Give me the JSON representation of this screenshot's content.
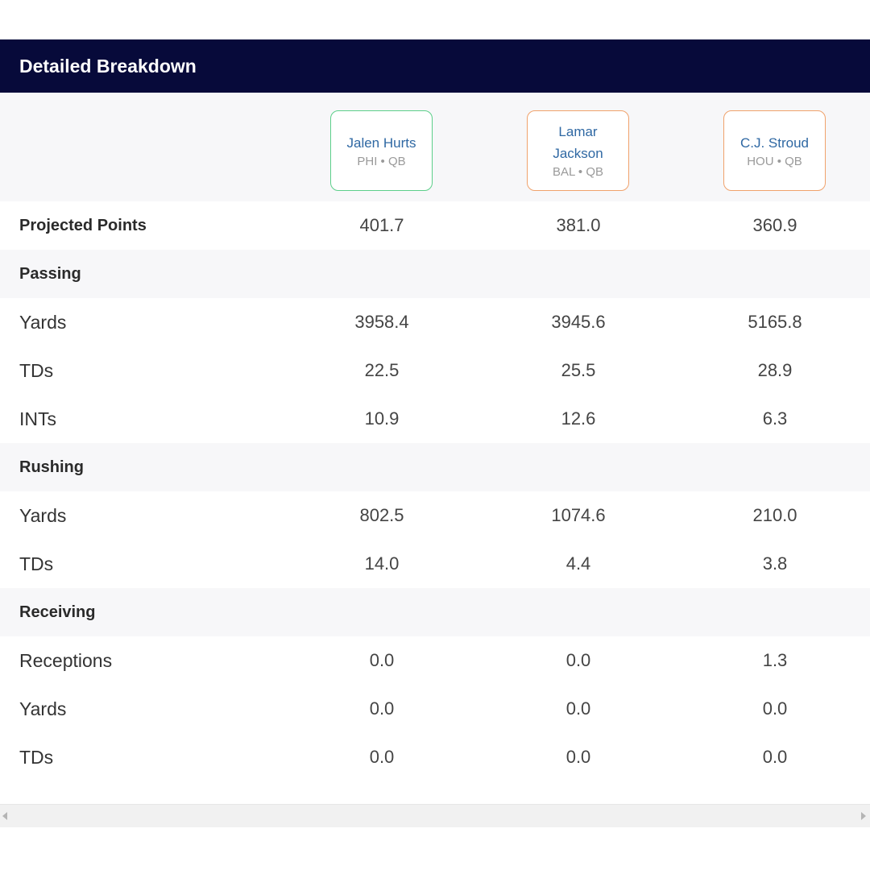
{
  "header": {
    "title": "Detailed Breakdown"
  },
  "players": [
    {
      "name": "Jalen Hurts",
      "meta": "PHI • QB",
      "border": "#5ccf8a"
    },
    {
      "name": "Lamar Jackson",
      "meta": "BAL • QB",
      "border": "#f0a26c"
    },
    {
      "name": "C.J. Stroud",
      "meta": "HOU • QB",
      "border": "#f0a26c"
    }
  ],
  "rows": {
    "projected": {
      "label": "Projected Points",
      "values": [
        "401.7",
        "381.0",
        "360.9"
      ]
    },
    "passing_header": {
      "label": "Passing"
    },
    "passing_yards": {
      "label": "Yards",
      "values": [
        "3958.4",
        "3945.6",
        "5165.8"
      ]
    },
    "passing_tds": {
      "label": "TDs",
      "values": [
        "22.5",
        "25.5",
        "28.9"
      ]
    },
    "passing_ints": {
      "label": "INTs",
      "values": [
        "10.9",
        "12.6",
        "6.3"
      ]
    },
    "rushing_header": {
      "label": "Rushing"
    },
    "rushing_yards": {
      "label": "Yards",
      "values": [
        "802.5",
        "1074.6",
        "210.0"
      ]
    },
    "rushing_tds": {
      "label": "TDs",
      "values": [
        "14.0",
        "4.4",
        "3.8"
      ]
    },
    "receiving_header": {
      "label": "Receiving"
    },
    "receiving_receptions": {
      "label": "Receptions",
      "values": [
        "0.0",
        "0.0",
        "1.3"
      ]
    },
    "receiving_yards": {
      "label": "Yards",
      "values": [
        "0.0",
        "0.0",
        "0.0"
      ]
    },
    "receiving_tds": {
      "label": "TDs",
      "values": [
        "0.0",
        "0.0",
        "0.0"
      ]
    }
  },
  "colors": {
    "header_bg": "#070a3a",
    "section_bg": "#f7f7f9",
    "player_name": "#2f68a3"
  }
}
